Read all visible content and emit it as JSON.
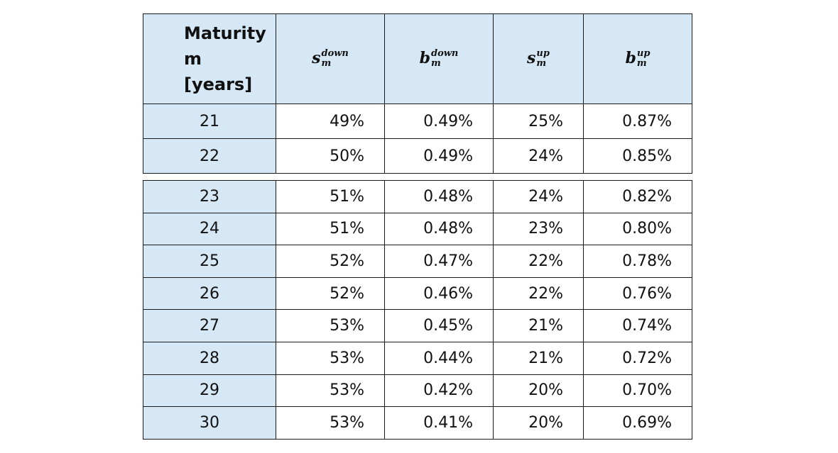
{
  "header": {
    "maturity": [
      "Maturity",
      "m",
      "[years]"
    ],
    "cols": [
      {
        "base": "s",
        "sup": "down",
        "sub": "m"
      },
      {
        "base": "b",
        "sup": "down",
        "sub": "m"
      },
      {
        "base": "s",
        "sup": "up",
        "sub": "m"
      },
      {
        "base": "b",
        "sup": "up",
        "sub": "m"
      }
    ]
  },
  "rows_top": [
    [
      "21",
      "49%",
      "0.49%",
      "25%",
      "0.87%"
    ],
    [
      "22",
      "50%",
      "0.49%",
      "24%",
      "0.85%"
    ]
  ],
  "rows_bottom": [
    [
      "23",
      "51%",
      "0.48%",
      "24%",
      "0.82%"
    ],
    [
      "24",
      "51%",
      "0.48%",
      "23%",
      "0.80%"
    ],
    [
      "25",
      "52%",
      "0.47%",
      "22%",
      "0.78%"
    ],
    [
      "26",
      "52%",
      "0.46%",
      "22%",
      "0.76%"
    ],
    [
      "27",
      "53%",
      "0.45%",
      "21%",
      "0.74%"
    ],
    [
      "28",
      "53%",
      "0.44%",
      "21%",
      "0.72%"
    ],
    [
      "29",
      "53%",
      "0.42%",
      "20%",
      "0.70%"
    ],
    [
      "30",
      "53%",
      "0.41%",
      "20%",
      "0.69%"
    ]
  ]
}
